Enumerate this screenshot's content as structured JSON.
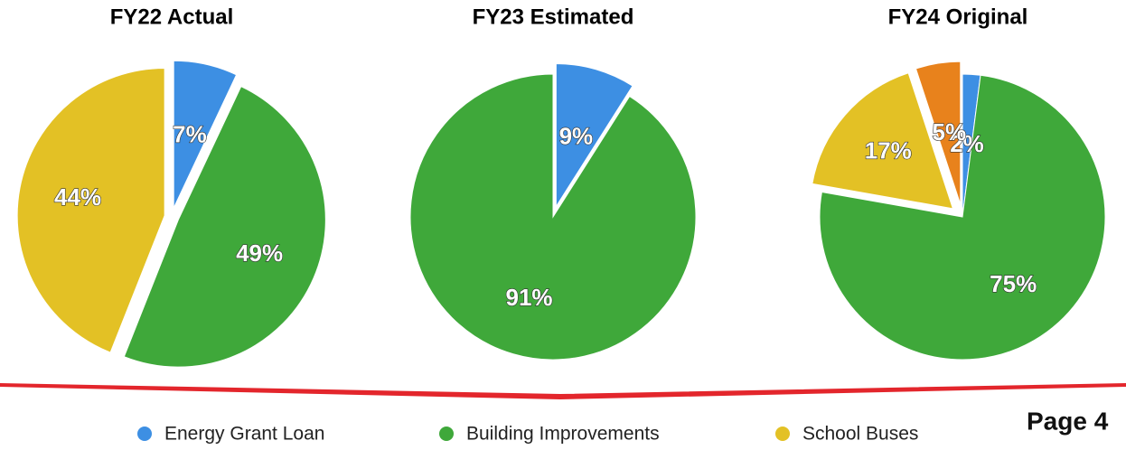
{
  "chart_data": [
    {
      "type": "pie",
      "title": "FY22 Actual",
      "categories": [
        "Energy Grant Loan",
        "Building Improvements",
        "School Buses"
      ],
      "values": [
        7,
        49,
        44
      ],
      "value_labels": [
        "7%",
        "49%",
        "44%"
      ],
      "colors": [
        "#3d8fe3",
        "#3fa83a",
        "#e3c125"
      ]
    },
    {
      "type": "pie",
      "title": "FY23 Estimated",
      "categories": [
        "Energy Grant Loan",
        "Building Improvements"
      ],
      "values": [
        9,
        91
      ],
      "value_labels": [
        "9%",
        "91%"
      ],
      "colors": [
        "#3d8fe3",
        "#3fa83a"
      ]
    },
    {
      "type": "pie",
      "title": "FY24 Original",
      "categories": [
        "Energy Grant Loan",
        "Building Improvements",
        "School Buses",
        null
      ],
      "values": [
        2,
        75,
        17,
        5
      ],
      "value_labels": [
        "2%",
        "75%",
        "17%",
        "5%"
      ],
      "colors": [
        "#3d8fe3",
        "#3fa83a",
        "#e3c125",
        "#e8821c"
      ]
    }
  ],
  "page_label": "Page 4"
}
